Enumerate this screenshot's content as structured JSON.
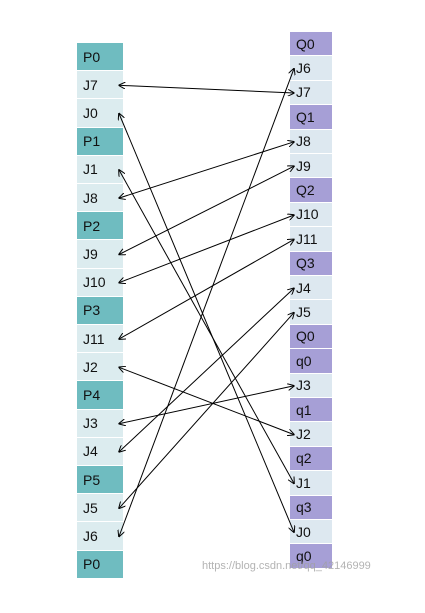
{
  "left_column": [
    {
      "label": "P0",
      "kind": "header"
    },
    {
      "label": "J7",
      "kind": "row"
    },
    {
      "label": "J0",
      "kind": "row"
    },
    {
      "label": "P1",
      "kind": "header"
    },
    {
      "label": "J1",
      "kind": "row"
    },
    {
      "label": "J8",
      "kind": "row"
    },
    {
      "label": "P2",
      "kind": "header"
    },
    {
      "label": "J9",
      "kind": "row"
    },
    {
      "label": "J10",
      "kind": "row"
    },
    {
      "label": "P3",
      "kind": "header"
    },
    {
      "label": "J11",
      "kind": "row"
    },
    {
      "label": "J2",
      "kind": "row"
    },
    {
      "label": "P4",
      "kind": "header"
    },
    {
      "label": "J3",
      "kind": "row"
    },
    {
      "label": "J4",
      "kind": "row"
    },
    {
      "label": "P5",
      "kind": "header"
    },
    {
      "label": "J5",
      "kind": "row"
    },
    {
      "label": "J6",
      "kind": "row"
    },
    {
      "label": "P0",
      "kind": "header"
    }
  ],
  "right_column": [
    {
      "label": "Q0",
      "kind": "header"
    },
    {
      "label": "J6",
      "kind": "row"
    },
    {
      "label": "J7",
      "kind": "row"
    },
    {
      "label": "Q1",
      "kind": "header"
    },
    {
      "label": "J8",
      "kind": "row"
    },
    {
      "label": "J9",
      "kind": "row"
    },
    {
      "label": "Q2",
      "kind": "header"
    },
    {
      "label": "J10",
      "kind": "row"
    },
    {
      "label": "J11",
      "kind": "row"
    },
    {
      "label": "Q3",
      "kind": "header"
    },
    {
      "label": "J4",
      "kind": "row"
    },
    {
      "label": "J5",
      "kind": "row"
    },
    {
      "label": "Q0",
      "kind": "header"
    },
    {
      "label": "q0",
      "kind": "header"
    },
    {
      "label": "J3",
      "kind": "row"
    },
    {
      "label": "q1",
      "kind": "header"
    },
    {
      "label": "J2",
      "kind": "row"
    },
    {
      "label": "q2",
      "kind": "header"
    },
    {
      "label": "J1",
      "kind": "row"
    },
    {
      "label": "q3",
      "kind": "header"
    },
    {
      "label": "J0",
      "kind": "row"
    },
    {
      "label": "q0",
      "kind": "header"
    }
  ],
  "connections": [
    {
      "from": 1,
      "to": 2,
      "arrows": "both"
    },
    {
      "from": 2,
      "to": 20,
      "arrows": "both"
    },
    {
      "from": 4,
      "to": 18,
      "arrows": "both"
    },
    {
      "from": 5,
      "to": 4,
      "arrows": "both"
    },
    {
      "from": 7,
      "to": 5,
      "arrows": "both"
    },
    {
      "from": 8,
      "to": 7,
      "arrows": "both"
    },
    {
      "from": 10,
      "to": 8,
      "arrows": "both"
    },
    {
      "from": 11,
      "to": 16,
      "arrows": "both"
    },
    {
      "from": 13,
      "to": 14,
      "arrows": "both"
    },
    {
      "from": 14,
      "to": 10,
      "arrows": "both"
    },
    {
      "from": 16,
      "to": 11,
      "arrows": "both"
    },
    {
      "from": 17,
      "to": 1,
      "arrows": "both"
    }
  ],
  "watermark": "https://blog.csdn.net/qq_42146999",
  "colors": {
    "left_header": "#6fbcc0",
    "left_row": "#dcecef",
    "right_header": "#a69fd6",
    "right_row": "#dde8f0",
    "line": "#000000"
  }
}
